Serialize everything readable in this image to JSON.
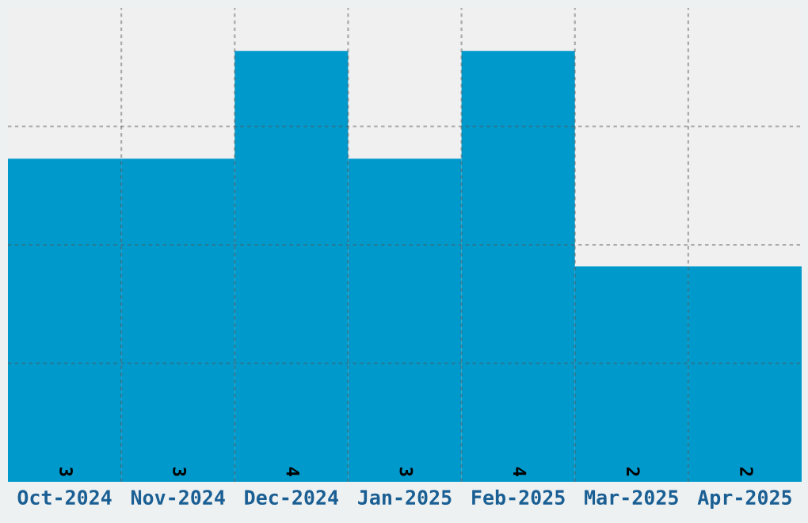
{
  "chart_data": {
    "type": "bar",
    "categories": [
      "Oct-2024",
      "Nov-2024",
      "Dec-2024",
      "Jan-2025",
      "Feb-2025",
      "Mar-2025",
      "Apr-2025"
    ],
    "values": [
      3,
      3,
      4,
      3,
      4,
      2,
      2
    ],
    "color": "#0099cc",
    "ylim": [
      0,
      4.4
    ],
    "yticks": [
      {
        "value": 1.1,
        "label": null
      },
      {
        "value": 2.2,
        "label": null
      },
      {
        "value": 3.3,
        "label": null
      }
    ],
    "tick_labels": "x",
    "grid": true,
    "data_labels": true
  }
}
